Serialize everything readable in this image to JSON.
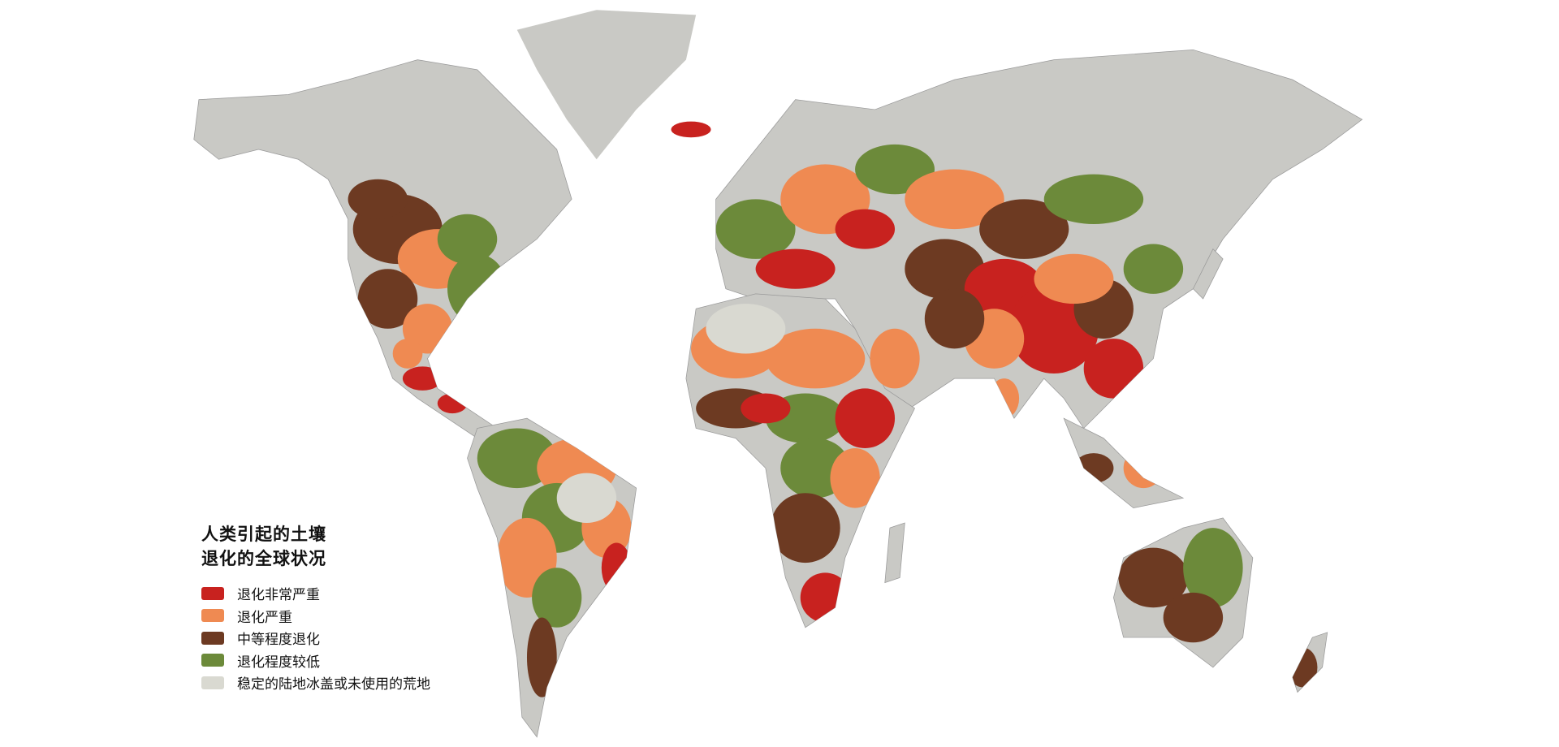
{
  "legend": {
    "title_line1": "人类引起的土壤",
    "title_line2": "退化的全球状况",
    "items": [
      {
        "label": "退化非常严重",
        "color": "#c8221f"
      },
      {
        "label": "退化严重",
        "color": "#ef8a52"
      },
      {
        "label": "中等程度退化",
        "color": "#6d3a22"
      },
      {
        "label": "退化程度较低",
        "color": "#6c8a3a"
      },
      {
        "label": "稳定的陆地冰盖或未使用的荒地",
        "color": "#d9d9d1"
      }
    ]
  },
  "colors": {
    "land_base": "#c9c9c5",
    "background": "#ffffff"
  }
}
